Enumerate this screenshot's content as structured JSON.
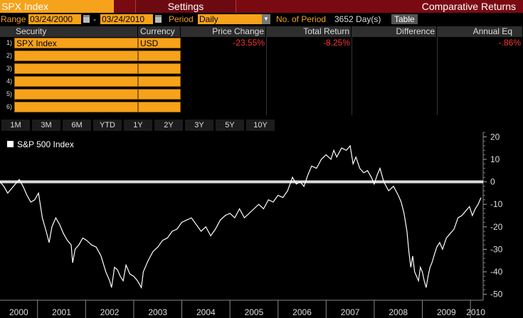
{
  "header": {
    "security_tab": "SPX Index",
    "settings_tab": "Settings",
    "title": "Comparative Returns"
  },
  "range": {
    "label": "Range",
    "start": "03/24/2000",
    "dash": "-",
    "end": "03/24/2010",
    "period_label": "Period",
    "period_value": "Daily",
    "num_period_label": "No. of Period",
    "num_period_value": "3652 Day(s)",
    "table_button": "Table"
  },
  "table": {
    "headers": [
      "Security",
      "Currency",
      "Price Change",
      "Total Return",
      "Difference",
      "Annual Eq"
    ],
    "rows": [
      {
        "num": "1)",
        "security": "SPX Index",
        "currency": "USD",
        "price_change": "-23.55%",
        "total_return": "-8.25%",
        "difference": "",
        "annual_eq": "-.86%"
      },
      {
        "num": "2)",
        "security": "",
        "currency": "",
        "price_change": "",
        "total_return": "",
        "difference": "",
        "annual_eq": ""
      },
      {
        "num": "3)",
        "security": "",
        "currency": "",
        "price_change": "",
        "total_return": "",
        "difference": "",
        "annual_eq": ""
      },
      {
        "num": "4)",
        "security": "",
        "currency": "",
        "price_change": "",
        "total_return": "",
        "difference": "",
        "annual_eq": ""
      },
      {
        "num": "5)",
        "security": "",
        "currency": "",
        "price_change": "",
        "total_return": "",
        "difference": "",
        "annual_eq": ""
      },
      {
        "num": "6)",
        "security": "",
        "currency": "",
        "price_change": "",
        "total_return": "",
        "difference": "",
        "annual_eq": ""
      }
    ]
  },
  "periods": [
    "1M",
    "3M",
    "6M",
    "YTD",
    "1Y",
    "2Y",
    "3Y",
    "5Y",
    "10Y"
  ],
  "chart_data": {
    "type": "line",
    "legend": [
      "S&P 500 Index"
    ],
    "legend_position": "top-left",
    "ylim": [
      -52,
      22
    ],
    "yticks": [
      20,
      10,
      0,
      -10,
      -20,
      -30,
      -40,
      -50
    ],
    "xticks": [
      "2000",
      "2001",
      "2002",
      "2003",
      "2004",
      "2005",
      "2006",
      "2007",
      "2008",
      "2009",
      "2010"
    ],
    "xlim": [
      2000.22,
      2010.22
    ],
    "zero_line": 0,
    "grid": false,
    "series": [
      {
        "name": "S&P 500 Index",
        "x": [
          2000.22,
          2000.3,
          2000.38,
          2000.46,
          2000.54,
          2000.62,
          2000.7,
          2000.78,
          2000.86,
          2000.94,
          2001.02,
          2001.1,
          2001.18,
          2001.24,
          2001.3,
          2001.38,
          2001.46,
          2001.54,
          2001.62,
          2001.7,
          2001.73,
          2001.78,
          2001.86,
          2001.94,
          2002.02,
          2002.12,
          2002.22,
          2002.32,
          2002.42,
          2002.5,
          2002.54,
          2002.6,
          2002.66,
          2002.72,
          2002.78,
          2002.84,
          2002.92,
          2003.0,
          2003.08,
          2003.16,
          2003.2,
          2003.3,
          2003.4,
          2003.5,
          2003.6,
          2003.7,
          2003.8,
          2003.9,
          2004.0,
          2004.1,
          2004.2,
          2004.3,
          2004.4,
          2004.5,
          2004.6,
          2004.7,
          2004.8,
          2004.9,
          2005.0,
          2005.1,
          2005.2,
          2005.3,
          2005.4,
          2005.5,
          2005.6,
          2005.7,
          2005.8,
          2005.9,
          2006.0,
          2006.1,
          2006.2,
          2006.3,
          2006.38,
          2006.46,
          2006.54,
          2006.62,
          2006.7,
          2006.8,
          2006.9,
          2007.0,
          2007.1,
          2007.16,
          2007.22,
          2007.32,
          2007.42,
          2007.5,
          2007.56,
          2007.62,
          2007.7,
          2007.78,
          2007.86,
          2007.94,
          2008.0,
          2008.06,
          2008.12,
          2008.2,
          2008.3,
          2008.4,
          2008.5,
          2008.56,
          2008.62,
          2008.68,
          2008.72,
          2008.76,
          2008.8,
          2008.84,
          2008.88,
          2008.92,
          2008.96,
          2009.0,
          2009.04,
          2009.08,
          2009.12,
          2009.16,
          2009.2,
          2009.24,
          2009.3,
          2009.36,
          2009.42,
          2009.5,
          2009.58,
          2009.66,
          2009.74,
          2009.82,
          2009.9,
          2009.98,
          2010.04,
          2010.1,
          2010.16,
          2010.22
        ],
        "values": [
          0,
          -2,
          -5,
          -3,
          -1,
          1,
          -2,
          -6,
          -9,
          -8,
          -5,
          -16,
          -22,
          -27,
          -20,
          -16,
          -19,
          -23,
          -26,
          -28,
          -36,
          -30,
          -28,
          -25,
          -26,
          -28,
          -29,
          -33,
          -40,
          -44,
          -47,
          -38,
          -39,
          -42,
          -44,
          -37,
          -41,
          -42,
          -44,
          -47,
          -40,
          -35,
          -31,
          -29,
          -26,
          -25,
          -22,
          -21,
          -18,
          -17,
          -16,
          -19,
          -22,
          -20,
          -24,
          -21,
          -17,
          -15,
          -14,
          -16,
          -12,
          -16,
          -14,
          -12,
          -10,
          -12,
          -8,
          -9,
          -6,
          -7,
          -4,
          2,
          -1,
          0,
          -2,
          3,
          7,
          6,
          10,
          12,
          10,
          14,
          11,
          15,
          14,
          16,
          8,
          11,
          6,
          4,
          5,
          2,
          -1,
          3,
          6,
          0,
          -4,
          -2,
          -6,
          -9,
          -14,
          -22,
          -31,
          -38,
          -33,
          -40,
          -42,
          -44,
          -38,
          -40,
          -44,
          -47,
          -42,
          -38,
          -36,
          -33,
          -29,
          -27,
          -30,
          -25,
          -23,
          -21,
          -16,
          -15,
          -13,
          -11,
          -15,
          -12,
          -10,
          -7
        ]
      }
    ]
  },
  "colors": {
    "orange": "#f6a21a",
    "title_red": "#7a0a12",
    "negative": "#ff3333",
    "line": "#ffffff"
  }
}
